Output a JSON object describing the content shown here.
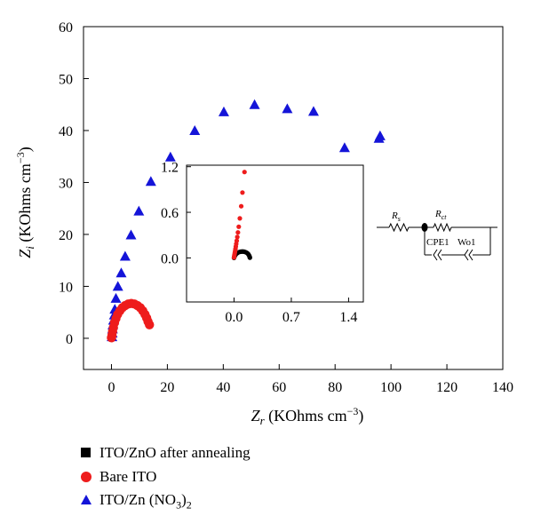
{
  "chart_data": [
    {
      "type": "scatter",
      "xlabel": {
        "symbol": "Z",
        "sub": "r",
        "unit": " (KOhms cm",
        "unit_sup": "−3",
        "unit_end": ")"
      },
      "ylabel": {
        "symbol": "Z",
        "sub": "i",
        "unit": " (KOhms cm",
        "unit_sup": "−3",
        "unit_end": ")"
      },
      "xlim": [
        -10,
        140
      ],
      "ylim": [
        -6,
        60
      ],
      "x_ticks": [
        0,
        20,
        40,
        60,
        80,
        100,
        120,
        140
      ],
      "y_ticks": [
        0,
        10,
        20,
        30,
        40,
        50,
        60
      ],
      "series": [
        {
          "name": "ITO/Zn (NO3)2",
          "marker": "triangle",
          "color": "#1414d8",
          "points": [
            [
              0.2,
              0.3
            ],
            [
              0.3,
              1.0
            ],
            [
              0.4,
              1.8
            ],
            [
              0.5,
              2.6
            ],
            [
              0.7,
              3.5
            ],
            [
              1.0,
              4.5
            ],
            [
              1.2,
              5.6
            ],
            [
              1.6,
              7.7
            ],
            [
              2.3,
              10.0
            ],
            [
              3.5,
              12.6
            ],
            [
              4.9,
              15.8
            ],
            [
              7.0,
              19.9
            ],
            [
              9.8,
              24.5
            ],
            [
              14.1,
              30.2
            ],
            [
              21.1,
              34.9
            ],
            [
              29.8,
              40.0
            ],
            [
              40.2,
              43.6
            ],
            [
              51.2,
              45.0
            ],
            [
              62.9,
              44.2
            ],
            [
              72.3,
              43.7
            ],
            [
              83.4,
              36.7
            ],
            [
              95.7,
              38.5
            ],
            [
              96.1,
              39.0
            ]
          ]
        },
        {
          "name": "Bare ITO",
          "marker": "circle",
          "color": "#ee1c1c",
          "points": [
            [
              0.0,
              0.1
            ],
            [
              0.2,
              0.6
            ],
            [
              0.4,
              1.3
            ],
            [
              0.7,
              2.1
            ],
            [
              1.1,
              3.0
            ],
            [
              1.6,
              3.8
            ],
            [
              2.2,
              4.6
            ],
            [
              3.0,
              5.3
            ],
            [
              3.9,
              5.9
            ],
            [
              4.9,
              6.3
            ],
            [
              6.0,
              6.6
            ],
            [
              7.1,
              6.7
            ],
            [
              8.2,
              6.6
            ],
            [
              9.3,
              6.3
            ],
            [
              10.3,
              5.9
            ],
            [
              11.2,
              5.3
            ],
            [
              12.0,
              4.6
            ],
            [
              12.6,
              3.9
            ],
            [
              13.1,
              3.2
            ],
            [
              13.6,
              2.6
            ]
          ]
        },
        {
          "name": "ITO/ZnO after annealing",
          "marker": "square",
          "color": "#000000",
          "points": []
        }
      ],
      "legend": [
        "ITO/ZnO after annealing",
        "Bare ITO",
        "ITO/Zn (NO3)2"
      ],
      "legend_position": "bottom-left outside"
    },
    {
      "type": "scatter",
      "role": "inset",
      "xlim": [
        -0.58,
        1.58
      ],
      "ylim": [
        -0.58,
        1.22
      ],
      "x_ticks": [
        0.0,
        0.7,
        1.4
      ],
      "x_tick_labels": [
        "0.0",
        "0.7",
        "1.4"
      ],
      "y_ticks": [
        0.0,
        0.6,
        1.2
      ],
      "y_tick_labels": [
        "0.0",
        "0.6",
        "1.2"
      ],
      "series": [
        {
          "name": "ITO/ZnO after annealing",
          "marker": "circle",
          "color": "#000000",
          "points": [
            [
              0.0,
              0.0
            ],
            [
              0.004,
              0.012
            ],
            [
              0.01,
              0.026
            ],
            [
              0.018,
              0.04
            ],
            [
              0.028,
              0.053
            ],
            [
              0.04,
              0.064
            ],
            [
              0.053,
              0.072
            ],
            [
              0.068,
              0.078
            ],
            [
              0.083,
              0.082
            ],
            [
              0.098,
              0.083
            ],
            [
              0.113,
              0.083
            ],
            [
              0.128,
              0.08
            ],
            [
              0.142,
              0.075
            ],
            [
              0.155,
              0.068
            ],
            [
              0.166,
              0.059
            ],
            [
              0.175,
              0.048
            ],
            [
              0.182,
              0.036
            ],
            [
              0.188,
              0.023
            ],
            [
              0.192,
              0.012
            ],
            [
              0.194,
              0.002
            ]
          ]
        },
        {
          "name": "Bare ITO",
          "marker": "circle",
          "color": "#ee1c1c",
          "points": [
            [
              0.0,
              0.005
            ],
            [
              0.003,
              0.025
            ],
            [
              0.006,
              0.045
            ],
            [
              0.01,
              0.068
            ],
            [
              0.014,
              0.092
            ],
            [
              0.018,
              0.12
            ],
            [
              0.022,
              0.15
            ],
            [
              0.027,
              0.185
            ],
            [
              0.033,
              0.225
            ],
            [
              0.04,
              0.275
            ],
            [
              0.048,
              0.335
            ],
            [
              0.058,
              0.41
            ],
            [
              0.071,
              0.52
            ],
            [
              0.088,
              0.68
            ],
            [
              0.103,
              0.86
            ],
            [
              0.128,
              1.13
            ]
          ]
        }
      ]
    }
  ],
  "circuit": {
    "rs_label": {
      "main": "R",
      "sub": "s"
    },
    "rct_label": {
      "main": "R",
      "sub": "ct"
    },
    "cpe_label": "CPE1",
    "wo_label": "Wo1"
  },
  "legend_items": [
    {
      "text": "ITO/ZnO after annealing"
    },
    {
      "text": "Bare ITO"
    },
    {
      "text_main": "ITO/Zn (NO",
      "text_sub1": "3",
      "text_mid": ")",
      "text_sub2": "2"
    }
  ]
}
